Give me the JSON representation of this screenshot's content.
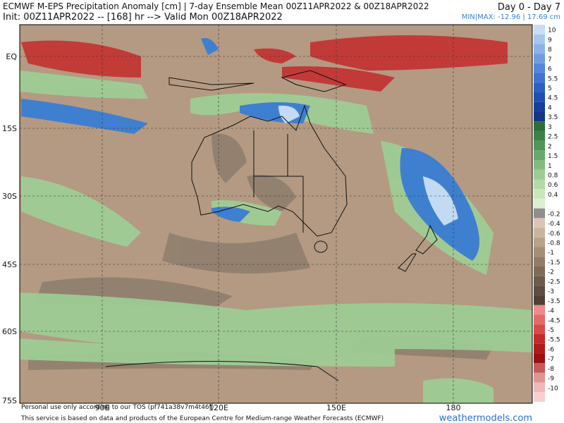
{
  "header": {
    "title": "ECMWF M-EPS Precipitation Anomaly [cm] | 7-day Ensemble Mean 00Z11APR2022 & 00Z18APR2022",
    "subtitle": "Init: 00Z11APR2022 -- [168] hr --> Valid Mon 00Z18APR2022",
    "period": "Day 0 - Day 7",
    "minmax": "MIN|MAX: -12.96 | 17.69 cm"
  },
  "map": {
    "lat_labels": [
      "EQ",
      "15S",
      "30S",
      "45S",
      "60S",
      "75S"
    ],
    "lon_labels": [
      "90E",
      "120E",
      "150E",
      "180"
    ]
  },
  "colorbar": {
    "labels": [
      "10",
      "9",
      "8",
      "7",
      "6",
      "5.5",
      "5",
      "4.5",
      "4",
      "3.5",
      "3",
      "2.5",
      "2",
      "1.5",
      "1",
      "0.8",
      "0.6",
      "0.4",
      "-0.2",
      "-0.4",
      "-0.6",
      "-0.8",
      "-1",
      "-1.5",
      "-2",
      "-2.5",
      "-3",
      "-3.5",
      "-4",
      "-4.5",
      "-5",
      "-5.5",
      "-6",
      "-7",
      "-8",
      "-9",
      "-10"
    ]
  },
  "footer": {
    "tos": "Personal use only according to our TOS (pf741a38v7m4t46f)",
    "credit": "This service is based on data and products of the European Centre for Medium-range Weather Forecasts (ECMWF)",
    "site": "weathermodels.com"
  }
}
